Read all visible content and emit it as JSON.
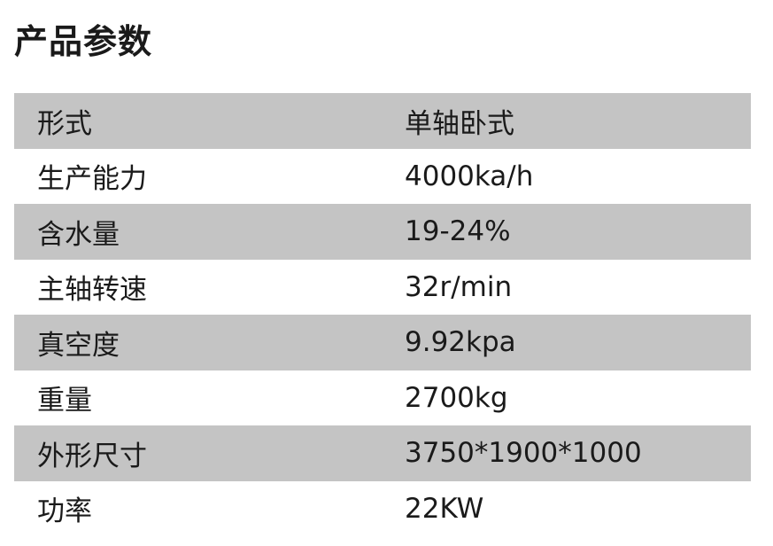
{
  "title": "产品参数",
  "colors": {
    "shaded_row": "#c4c4c4"
  },
  "rows": [
    {
      "label": "形式",
      "value": "单轴卧式"
    },
    {
      "label": "生产能力",
      "value": "4000ka/h"
    },
    {
      "label": "含水量",
      "value": "19-24%"
    },
    {
      "label": "主轴转速",
      "value": "32r/min"
    },
    {
      "label": "真空度",
      "value": "9.92kpa"
    },
    {
      "label": "重量",
      "value": "2700kg"
    },
    {
      "label": "外形尺寸",
      "value": "3750*1900*1000"
    },
    {
      "label": "功率",
      "value": "22KW"
    }
  ]
}
